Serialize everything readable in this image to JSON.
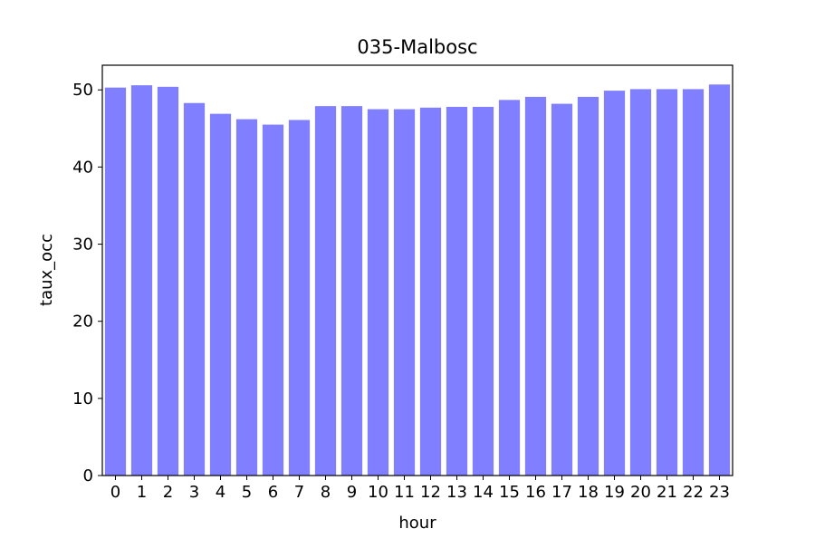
{
  "chart_data": {
    "type": "bar",
    "title": "035-Malbosc",
    "xlabel": "hour",
    "ylabel": "taux_occ",
    "categories": [
      "0",
      "1",
      "2",
      "3",
      "4",
      "5",
      "6",
      "7",
      "8",
      "9",
      "10",
      "11",
      "12",
      "13",
      "14",
      "15",
      "16",
      "17",
      "18",
      "19",
      "20",
      "21",
      "22",
      "23"
    ],
    "values": [
      50.3,
      50.6,
      50.4,
      48.3,
      46.9,
      46.2,
      45.5,
      46.1,
      47.9,
      47.9,
      47.5,
      47.5,
      47.7,
      47.8,
      47.8,
      48.7,
      49.1,
      48.2,
      49.1,
      49.9,
      50.1,
      50.1,
      50.1,
      50.7
    ],
    "ylim": [
      0,
      53.2
    ],
    "yticks": [
      0,
      10,
      20,
      30,
      40,
      50
    ],
    "bar_color": "#7f7fff",
    "grid": false,
    "legend": "none"
  }
}
